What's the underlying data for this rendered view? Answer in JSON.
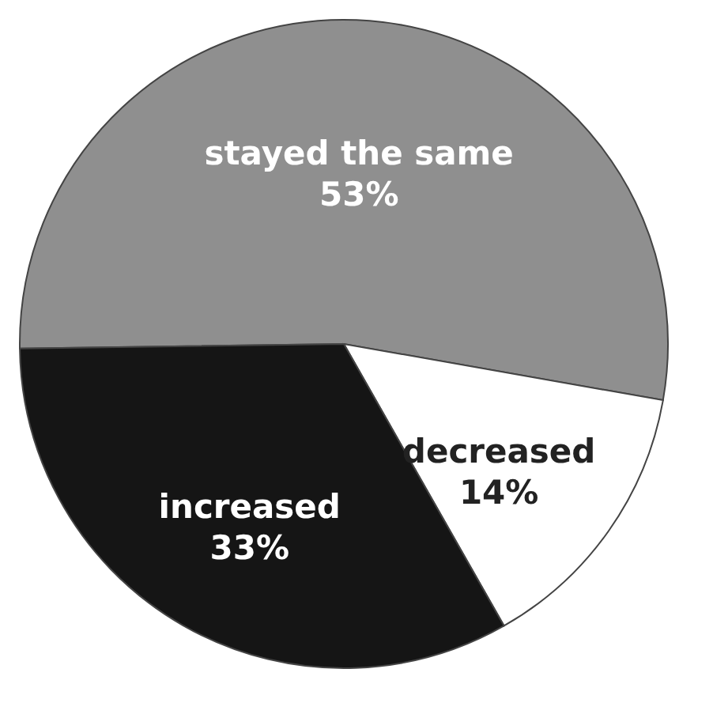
{
  "chart_data": {
    "type": "pie",
    "categories": [
      "stayed the same",
      "decreased",
      "increased"
    ],
    "values": [
      53,
      14,
      33
    ],
    "value_labels": [
      "53%",
      "14%",
      "33%"
    ],
    "colors": [
      "#8f8f8f",
      "#ffffff",
      "#151515"
    ],
    "legend": false
  }
}
